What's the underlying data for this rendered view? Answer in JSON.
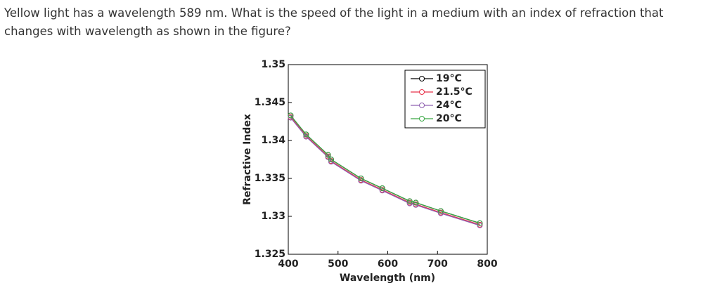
{
  "question": "Yellow light has a wavelength 589 nm. What is the speed of the light in a medium with an index of refraction that changes with wavelength as shown in the figure?",
  "chart_data": {
    "type": "line",
    "xlabel": "Wavelength (nm)",
    "ylabel": "Refractive Index",
    "x": [
      404.7,
      435.8,
      480,
      486.1,
      546.1,
      589,
      644,
      656.3,
      706.5,
      785
    ],
    "series": [
      {
        "name": "19°C",
        "color": "#000000",
        "values": [
          1.3433,
          1.3408,
          1.3381,
          1.3375,
          1.335,
          1.3337,
          1.332,
          1.3318,
          1.3307,
          1.3291
        ]
      },
      {
        "name": "21.5°C",
        "color": "#e8334a",
        "values": [
          1.3431,
          1.3406,
          1.3379,
          1.3373,
          1.3348,
          1.3335,
          1.3318,
          1.3316,
          1.3305,
          1.3289
        ]
      },
      {
        "name": "24°C",
        "color": "#8e5fb0",
        "values": [
          1.343,
          1.3405,
          1.3378,
          1.3372,
          1.3347,
          1.3334,
          1.3317,
          1.3315,
          1.3304,
          1.3288
        ]
      },
      {
        "name": "20°C",
        "color": "#3aa845",
        "values": [
          1.3433,
          1.3408,
          1.3381,
          1.3375,
          1.335,
          1.3337,
          1.332,
          1.3318,
          1.3307,
          1.3291
        ]
      }
    ],
    "xlim": [
      400,
      800
    ],
    "xticks": [
      400,
      500,
      600,
      700,
      800
    ],
    "ylim": [
      1.325,
      1.35
    ],
    "yticks": [
      1.325,
      1.33,
      1.335,
      1.34,
      1.345,
      1.35
    ],
    "legend": "upper right"
  }
}
